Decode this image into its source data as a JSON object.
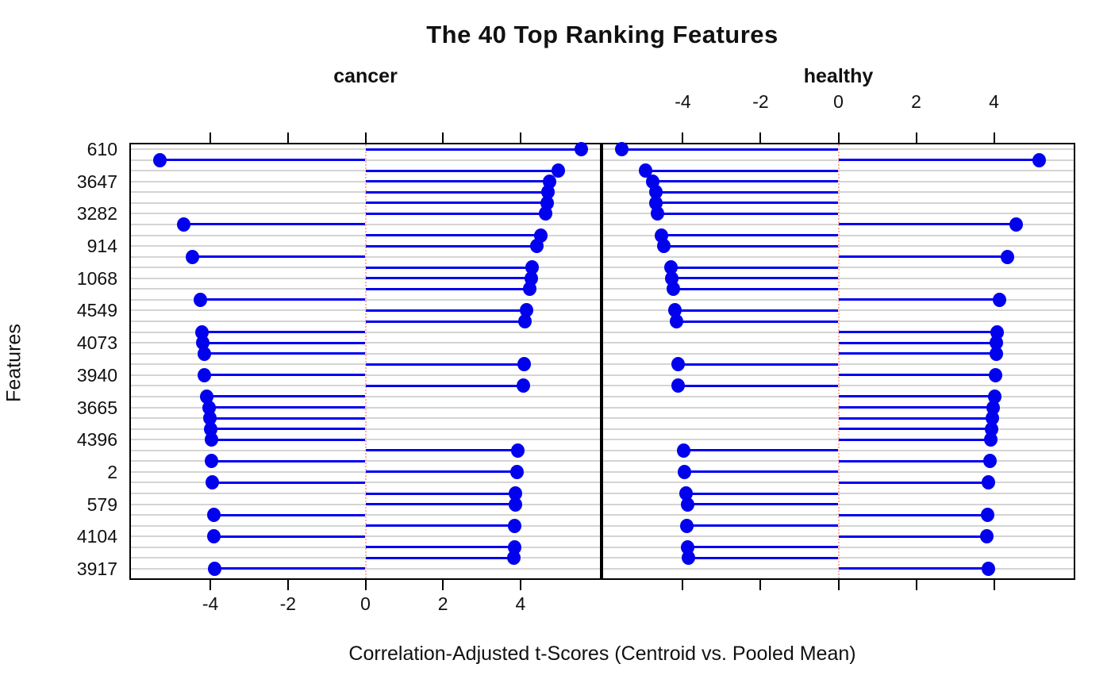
{
  "figure": {
    "title": "The 40 Top Ranking Features",
    "xlabel": "Correlation-Adjusted t-Scores (Centroid vs. Pooled Mean)",
    "ylabel": "Features"
  },
  "chart_data": {
    "type": "bar",
    "variant": "two-panel lollipop dotplot (lattice style), stems drawn from 0 to value with filled circle endpoints",
    "title": "The 40 Top Ranking Features",
    "xlabel": "Correlation-Adjusted t-Scores (Centroid vs. Pooled Mean)",
    "ylabel": "Features",
    "panels": [
      "cancer",
      "healthy"
    ],
    "x_ticks": [
      -4,
      -2,
      0,
      2,
      4
    ],
    "xlim": [
      -6.05,
      6.05
    ],
    "top_axis_labels_panel": "healthy",
    "bottom_axis_labels_panel": "cancer",
    "grid": "horizontal gray line at every row",
    "origin_line": "dotted light-red vertical line at 0 in each panel",
    "accent_color": "#0101ee",
    "gridline_color": "#d4d4d4",
    "n_rows": 40,
    "y_labels_shown_every": 3,
    "rows": [
      {
        "label": "610",
        "cancer": 5.56,
        "healthy": -5.58
      },
      {
        "label": "",
        "cancer": -5.3,
        "healthy": 5.17
      },
      {
        "label": "",
        "cancer": 4.97,
        "healthy": -4.95
      },
      {
        "label": "3647",
        "cancer": 4.75,
        "healthy": -4.77
      },
      {
        "label": "",
        "cancer": 4.71,
        "healthy": -4.7
      },
      {
        "label": "",
        "cancer": 4.68,
        "healthy": -4.69
      },
      {
        "label": "3282",
        "cancer": 4.65,
        "healthy": -4.65
      },
      {
        "label": "",
        "cancer": -4.69,
        "healthy": 4.58
      },
      {
        "label": "",
        "cancer": 4.53,
        "healthy": -4.55
      },
      {
        "label": "914",
        "cancer": 4.42,
        "healthy": -4.49
      },
      {
        "label": "",
        "cancer": -4.46,
        "healthy": 4.34
      },
      {
        "label": "",
        "cancer": 4.29,
        "healthy": -4.3
      },
      {
        "label": "1068",
        "cancer": 4.27,
        "healthy": -4.29
      },
      {
        "label": "",
        "cancer": 4.24,
        "healthy": -4.25
      },
      {
        "label": "",
        "cancer": -4.25,
        "healthy": 4.14
      },
      {
        "label": "4549",
        "cancer": 4.15,
        "healthy": -4.2
      },
      {
        "label": "",
        "cancer": 4.12,
        "healthy": -4.17
      },
      {
        "label": "",
        "cancer": -4.21,
        "healthy": 4.08
      },
      {
        "label": "4073",
        "cancer": -4.2,
        "healthy": 4.07
      },
      {
        "label": "",
        "cancer": -4.16,
        "healthy": 4.06
      },
      {
        "label": "",
        "cancer": 4.1,
        "healthy": -4.13
      },
      {
        "label": "3940",
        "cancer": -4.15,
        "healthy": 4.05
      },
      {
        "label": "",
        "cancer": 4.08,
        "healthy": -4.12
      },
      {
        "label": "",
        "cancer": -4.09,
        "healthy": 4.02
      },
      {
        "label": "3665",
        "cancer": -4.04,
        "healthy": 3.98
      },
      {
        "label": "",
        "cancer": -4.02,
        "healthy": 3.95
      },
      {
        "label": "",
        "cancer": -4.0,
        "healthy": 3.94
      },
      {
        "label": "4396",
        "cancer": -3.98,
        "healthy": 3.91
      },
      {
        "label": "",
        "cancer": 3.94,
        "healthy": -3.98
      },
      {
        "label": "",
        "cancer": -3.97,
        "healthy": 3.9
      },
      {
        "label": "2",
        "cancer": 3.91,
        "healthy": -3.96
      },
      {
        "label": "",
        "cancer": -3.96,
        "healthy": 3.86
      },
      {
        "label": "",
        "cancer": 3.87,
        "healthy": -3.91
      },
      {
        "label": "579",
        "cancer": 3.86,
        "healthy": -3.88
      },
      {
        "label": "",
        "cancer": -3.92,
        "healthy": 3.83
      },
      {
        "label": "",
        "cancer": 3.84,
        "healthy": -3.89
      },
      {
        "label": "4104",
        "cancer": -3.92,
        "healthy": 3.82
      },
      {
        "label": "",
        "cancer": 3.85,
        "healthy": -3.88
      },
      {
        "label": "",
        "cancer": 3.83,
        "healthy": -3.86
      },
      {
        "label": "3917",
        "cancer": -3.88,
        "healthy": 3.85
      }
    ]
  }
}
